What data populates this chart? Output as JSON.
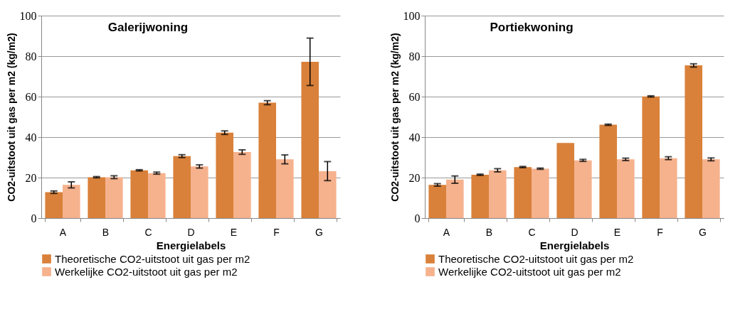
{
  "chart_data": [
    {
      "type": "bar",
      "title": "Galerijwoning",
      "xlabel": "Energielabels",
      "ylabel": "CO2-uitstoot uit gas per m2 (kg/m2)",
      "categories": [
        "A",
        "B",
        "C",
        "D",
        "E",
        "F",
        "G"
      ],
      "ylim": [
        0,
        100
      ],
      "yticks": [
        0,
        20,
        40,
        60,
        80,
        100
      ],
      "grid": "y",
      "legend": "bottom",
      "series": [
        {
          "name": "Theoretische CO2-uitstoot uit gas per m2",
          "color": "#d9813a",
          "values": [
            12.8,
            20.2,
            23.6,
            30.6,
            42.2,
            57.0,
            77.2
          ],
          "errors": [
            0.6,
            0.3,
            0.3,
            0.7,
            0.9,
            1.0,
            11.7
          ]
        },
        {
          "name": "Werkelijke CO2-uitstoot uit gas per m2",
          "color": "#f6b28d",
          "values": [
            16.4,
            20.2,
            22.2,
            25.5,
            32.6,
            29.0,
            23.2
          ],
          "errors": [
            1.5,
            0.7,
            0.5,
            0.8,
            1.1,
            2.2,
            4.7
          ]
        }
      ]
    },
    {
      "type": "bar",
      "title": "Portiekwoning",
      "xlabel": "Energielabels",
      "ylabel": "CO2-uitstoot uit gas per m2 (kg/m2)",
      "categories": [
        "A",
        "B",
        "C",
        "D",
        "E",
        "F",
        "G"
      ],
      "ylim": [
        0,
        100
      ],
      "yticks": [
        0,
        20,
        40,
        60,
        80,
        100
      ],
      "grid": "y",
      "legend": "bottom",
      "series": [
        {
          "name": "Theoretische CO2-uitstoot uit gas per m2",
          "color": "#d9813a",
          "values": [
            16.4,
            21.4,
            25.2,
            37.1,
            46.1,
            60.1,
            75.4
          ],
          "errors": [
            0.6,
            0.3,
            0.3,
            null,
            0.3,
            0.3,
            0.8
          ]
        },
        {
          "name": "Werkelijke CO2-uitstoot uit gas per m2",
          "color": "#f6b28d",
          "values": [
            19.0,
            23.6,
            24.4,
            28.5,
            29.0,
            29.6,
            29.0
          ],
          "errors": [
            1.8,
            0.8,
            0.3,
            0.5,
            0.6,
            0.7,
            0.7
          ]
        }
      ]
    }
  ]
}
